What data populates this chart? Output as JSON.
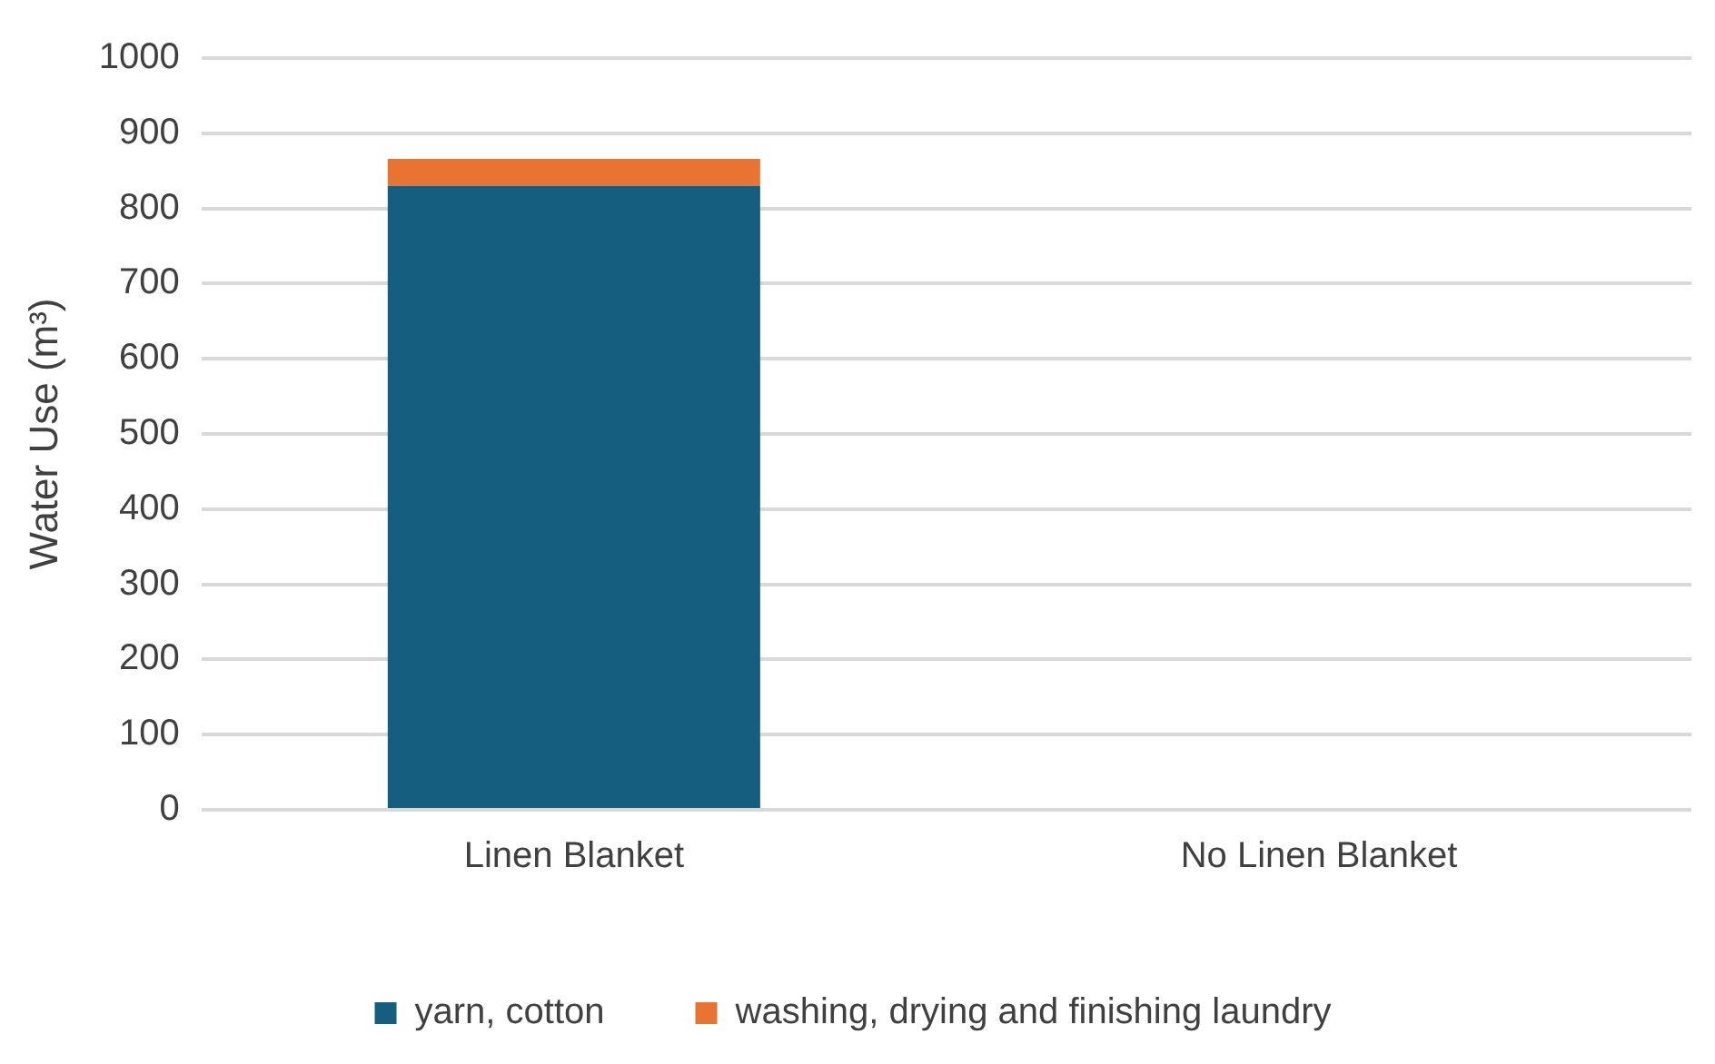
{
  "chart_data": {
    "type": "bar",
    "ylabel": "Water Use (m³)",
    "categories": [
      "Linen Blanket",
      "No Linen Blanket"
    ],
    "stacked": true,
    "series": [
      {
        "name": "yarn, cotton",
        "color": "#165e80",
        "values": [
          830,
          null
        ]
      },
      {
        "name": "washing, drying and finishing laundry",
        "color": "#e97432",
        "values": [
          36,
          null
        ]
      }
    ],
    "ylim": [
      0,
      1000
    ],
    "yticks": [
      0,
      100,
      200,
      300,
      400,
      500,
      600,
      700,
      800,
      900,
      1000
    ],
    "grid": "y",
    "legend": "bottom"
  }
}
